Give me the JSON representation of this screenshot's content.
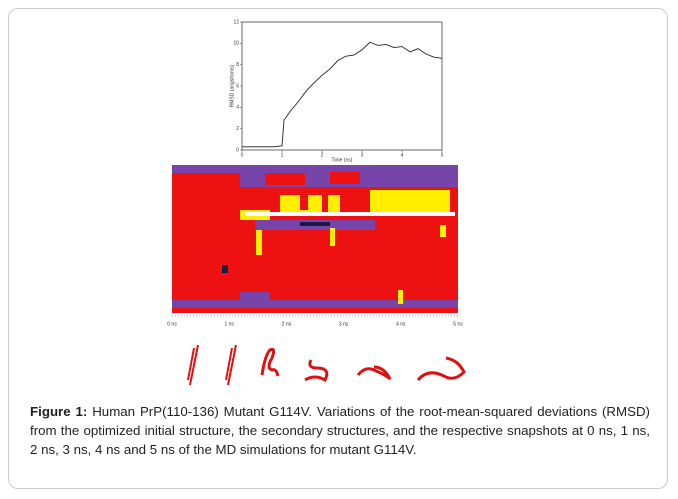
{
  "figure": {
    "rmsd_plot": {
      "type": "line",
      "x_label": "Time (ns)",
      "y_label": "RMSD (angstroms)",
      "color": "#222222",
      "x": [
        0,
        0.2,
        0.4,
        0.6,
        0.8,
        1.0,
        1.05,
        1.2,
        1.4,
        1.6,
        1.8,
        2.0,
        2.2,
        2.4,
        2.6,
        2.8,
        3.0,
        3.2,
        3.4,
        3.6,
        3.8,
        4.0,
        4.2,
        4.4,
        4.6,
        4.8,
        5.0
      ],
      "values": [
        0.3,
        0.3,
        0.3,
        0.3,
        0.3,
        0.4,
        2.8,
        3.6,
        4.5,
        5.5,
        6.3,
        7.0,
        7.6,
        8.4,
        8.8,
        8.9,
        9.4,
        10.1,
        9.8,
        9.9,
        9.6,
        9.7,
        9.2,
        9.5,
        9.0,
        8.7,
        8.6
      ],
      "xlim": [
        0,
        5
      ],
      "ylim": [
        0,
        12
      ],
      "xticks": [
        0,
        1,
        2,
        3,
        4,
        5
      ],
      "yticks": [
        0,
        2,
        4,
        6,
        8,
        10,
        12
      ]
    },
    "secondary_structure": {
      "time_labels": [
        "0 ns",
        "1 ns",
        "2 ns",
        "3 ns",
        "4 ns",
        "5 ns"
      ]
    },
    "caption": {
      "label": "Figure 1:",
      "text": "Human PrP(110-136) Mutant G114V. Variations of the root-mean-squared deviations (RMSD) from the optimized initial structure, the secondary structures, and the respective snapshots at 0 ns, 1 ns, 2 ns, 3 ns, 4 ns and 5 ns of the MD simulations for mutant G114V."
    }
  }
}
